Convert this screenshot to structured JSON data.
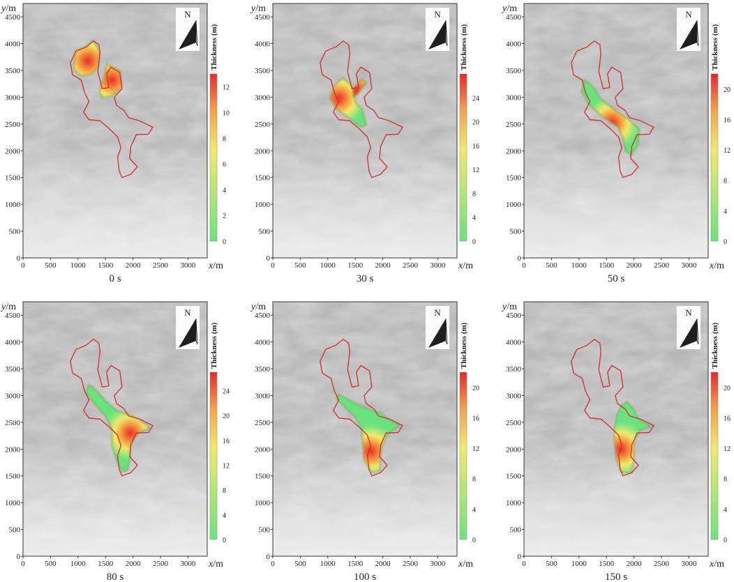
{
  "axis_labels": {
    "x_var": "x",
    "y_var": "y",
    "unit": "/m"
  },
  "x_ticks": [
    0,
    500,
    1000,
    1500,
    2000,
    2500,
    3000
  ],
  "y_ticks": [
    0,
    500,
    1000,
    1500,
    2000,
    2500,
    3000,
    3500,
    4000,
    4500
  ],
  "x_range": [
    0,
    3350
  ],
  "y_range": [
    0,
    4750
  ],
  "colorbar_title": "Thickness (m)",
  "north_label": "N",
  "colors": {
    "boundary": "#d42b2b",
    "thin": "#6be37f",
    "mid": "#f2e96b",
    "thick": "#e8282a",
    "terrain": "#d6d6d6"
  },
  "landslide_boundary": [
    [
      1280,
      4050
    ],
    [
      1150,
      3940
    ],
    [
      960,
      3860
    ],
    [
      860,
      3640
    ],
    [
      900,
      3420
    ],
    [
      1060,
      3320
    ],
    [
      1120,
      3080
    ],
    [
      1200,
      2920
    ],
    [
      1100,
      2720
    ],
    [
      1200,
      2580
    ],
    [
      1400,
      2560
    ],
    [
      1560,
      2420
    ],
    [
      1720,
      2260
    ],
    [
      1780,
      2060
    ],
    [
      1720,
      1880
    ],
    [
      1750,
      1620
    ],
    [
      1800,
      1500
    ],
    [
      1960,
      1560
    ],
    [
      2080,
      1700
    ],
    [
      1940,
      1860
    ],
    [
      1960,
      2080
    ],
    [
      2060,
      2300
    ],
    [
      2280,
      2310
    ],
    [
      2360,
      2440
    ],
    [
      2120,
      2560
    ],
    [
      1920,
      2620
    ],
    [
      1840,
      2750
    ],
    [
      1700,
      2850
    ],
    [
      1660,
      3000
    ],
    [
      1800,
      3160
    ],
    [
      1760,
      3460
    ],
    [
      1600,
      3560
    ],
    [
      1520,
      3440
    ],
    [
      1560,
      3180
    ],
    [
      1440,
      3160
    ],
    [
      1360,
      3480
    ],
    [
      1400,
      3820
    ],
    [
      1380,
      3980
    ]
  ],
  "panels": [
    {
      "caption": "0 s",
      "colorbar_max": 13,
      "colorbar_ticks": [
        0,
        2,
        4,
        6,
        8,
        10,
        12
      ],
      "deposits": [
        {
          "points": [
            [
              1280,
              4060
            ],
            [
              1140,
              3940
            ],
            [
              960,
              3860
            ],
            [
              920,
              3520
            ],
            [
              1060,
              3400
            ],
            [
              1240,
              3430
            ],
            [
              1360,
              3560
            ],
            [
              1390,
              3860
            ]
          ],
          "peak": [
            1180,
            3680
          ]
        },
        {
          "points": [
            [
              1520,
              3620
            ],
            [
              1760,
              3500
            ],
            [
              1800,
              3200
            ],
            [
              1620,
              3030
            ],
            [
              1440,
              2990
            ],
            [
              1390,
              3140
            ],
            [
              1470,
              3360
            ]
          ],
          "peak": [
            1620,
            3320
          ]
        }
      ]
    },
    {
      "caption": "30 s",
      "colorbar_max": 28,
      "colorbar_ticks": [
        0,
        4,
        8,
        12,
        16,
        20,
        24
      ],
      "deposits": [
        {
          "points": [
            [
              1280,
              3360
            ],
            [
              1120,
              3220
            ],
            [
              1040,
              2980
            ],
            [
              1160,
              2780
            ],
            [
              1400,
              2600
            ],
            [
              1600,
              2450
            ],
            [
              1700,
              2480
            ],
            [
              1620,
              2780
            ],
            [
              1500,
              2900
            ],
            [
              1480,
              3160
            ]
          ],
          "peak": [
            1200,
            2980
          ]
        },
        {
          "points": [
            [
              1450,
              3150
            ],
            [
              1620,
              3330
            ],
            [
              1700,
              3280
            ],
            [
              1540,
              3050
            ],
            [
              1460,
              3000
            ]
          ],
          "peak": [
            1520,
            3120
          ]
        }
      ]
    },
    {
      "caption": "50 s",
      "colorbar_max": 22,
      "colorbar_ticks": [
        0,
        4,
        8,
        12,
        16,
        20
      ],
      "deposits": [
        {
          "points": [
            [
              1100,
              3330
            ],
            [
              1050,
              3100
            ],
            [
              1200,
              2850
            ],
            [
              1450,
              2620
            ],
            [
              1700,
              2450
            ],
            [
              1800,
              2250
            ],
            [
              1850,
              2000
            ],
            [
              1950,
              1920
            ],
            [
              2070,
              2120
            ],
            [
              2100,
              2400
            ],
            [
              1900,
              2580
            ],
            [
              1650,
              2760
            ],
            [
              1400,
              2960
            ],
            [
              1250,
              3200
            ]
          ],
          "peak": [
            1600,
            2520
          ]
        }
      ]
    },
    {
      "caption": "80 s",
      "colorbar_max": 27,
      "colorbar_ticks": [
        0,
        4,
        8,
        12,
        16,
        20,
        24
      ],
      "deposits": [
        {
          "points": [
            [
              1200,
              3200
            ],
            [
              1150,
              3050
            ],
            [
              1300,
              2850
            ],
            [
              1500,
              2620
            ],
            [
              1620,
              2380
            ],
            [
              1620,
              2050
            ],
            [
              1700,
              1800
            ],
            [
              1800,
              1580
            ],
            [
              1900,
              1600
            ],
            [
              1950,
              1850
            ],
            [
              1950,
              2100
            ],
            [
              2100,
              2300
            ],
            [
              2300,
              2400
            ],
            [
              2100,
              2560
            ],
            [
              1900,
              2650
            ],
            [
              1700,
              2720
            ],
            [
              1500,
              2900
            ],
            [
              1320,
              3100
            ]
          ],
          "peak": [
            1950,
            2300
          ]
        }
      ]
    },
    {
      "caption": "100 s",
      "colorbar_max": 22,
      "colorbar_ticks": [
        0,
        4,
        8,
        12,
        16,
        20
      ],
      "deposits": [
        {
          "points": [
            [
              1200,
              3020
            ],
            [
              1150,
              2950
            ],
            [
              1300,
              2800
            ],
            [
              1500,
              2600
            ],
            [
              1620,
              2380
            ],
            [
              1640,
              2100
            ],
            [
              1660,
              1800
            ],
            [
              1800,
              1560
            ],
            [
              1950,
              1600
            ],
            [
              1950,
              1850
            ],
            [
              2000,
              2100
            ],
            [
              2100,
              2300
            ],
            [
              2300,
              2450
            ],
            [
              2100,
              2560
            ],
            [
              1950,
              2680
            ],
            [
              1750,
              2740
            ],
            [
              1500,
              2850
            ],
            [
              1320,
              2960
            ]
          ],
          "peak": [
            1780,
            1960
          ]
        }
      ]
    },
    {
      "caption": "150 s",
      "colorbar_max": 22,
      "colorbar_ticks": [
        0,
        4,
        8,
        12,
        16,
        20
      ],
      "deposits": [
        {
          "points": [
            [
              1780,
              2820
            ],
            [
              1700,
              2650
            ],
            [
              1640,
              2350
            ],
            [
              1650,
              2100
            ],
            [
              1680,
              1800
            ],
            [
              1780,
              1560
            ],
            [
              1950,
              1560
            ],
            [
              2000,
              1800
            ],
            [
              2000,
              2100
            ],
            [
              2100,
              2350
            ],
            [
              2300,
              2420
            ],
            [
              2080,
              2560
            ],
            [
              1980,
              2760
            ],
            [
              1880,
              2880
            ]
          ],
          "peak": [
            1760,
            2000
          ]
        }
      ]
    }
  ]
}
